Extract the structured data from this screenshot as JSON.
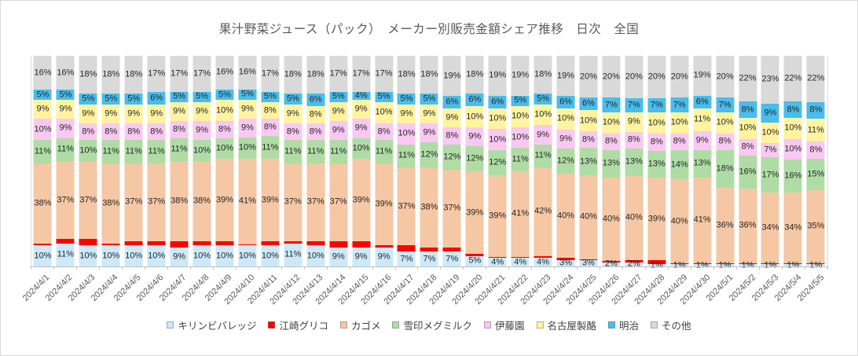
{
  "title": "果汁野菜ジュース（パック）　メーカー別販売金額シェア推移　日次　全国",
  "chart_data": {
    "type": "bar",
    "stacked": true,
    "percent_stacked": true,
    "title": "果汁野菜ジュース（パック）　メーカー別販売金額シェア推移　日次　全国",
    "xlabel": "",
    "ylabel": "",
    "ylim": [
      0,
      100
    ],
    "unit": "%",
    "grid": false,
    "legend_position": "bottom",
    "x_label_rotation_deg": 45,
    "label_format": "{value}%",
    "categories": [
      "2024/4/1",
      "2024/4/2",
      "2024/4/3",
      "2024/4/4",
      "2024/4/5",
      "2024/4/6",
      "2024/4/7",
      "2024/4/8",
      "2024/4/9",
      "2024/4/10",
      "2024/4/11",
      "2024/4/12",
      "2024/4/13",
      "2024/4/14",
      "2024/4/15",
      "2024/4/16",
      "2024/4/17",
      "2024/4/18",
      "2024/4/19",
      "2024/4/20",
      "2024/4/21",
      "2024/4/22",
      "2024/4/23",
      "2024/4/24",
      "2024/4/25",
      "2024/4/26",
      "2024/4/27",
      "2024/4/28",
      "2024/4/29",
      "2024/4/30",
      "2024/5/1",
      "2024/5/2",
      "2024/5/3",
      "2024/5/4",
      "2024/5/5"
    ],
    "series": [
      {
        "name": "キリンビバレッジ",
        "key": "kirin-beverage",
        "color": "#CBE9F8",
        "show_labels": true,
        "values": [
          10,
          11,
          10,
          10,
          10,
          10,
          9,
          10,
          10,
          10,
          10,
          11,
          10,
          9,
          9,
          9,
          7,
          7,
          7,
          5,
          4,
          4,
          4,
          3,
          3,
          2,
          2,
          1,
          1,
          1,
          1,
          1,
          1,
          1,
          1
        ]
      },
      {
        "name": "江崎グリコ",
        "key": "ezaki-glico",
        "color": "#FF0000",
        "show_labels": false,
        "values": [
          1,
          2,
          3,
          1,
          2,
          2,
          3,
          2,
          2,
          0,
          2,
          1,
          2,
          3,
          3,
          1,
          3,
          2,
          2,
          1,
          0,
          0,
          1,
          1,
          0,
          0,
          1,
          2,
          0,
          0,
          0,
          0,
          0,
          0,
          0
        ]
      },
      {
        "name": "カゴメ",
        "key": "kagome",
        "color": "#F5C7A4",
        "show_labels": true,
        "values": [
          38,
          37,
          37,
          38,
          37,
          37,
          38,
          38,
          39,
          41,
          39,
          37,
          37,
          37,
          39,
          39,
          37,
          38,
          37,
          39,
          39,
          41,
          42,
          40,
          40,
          40,
          40,
          39,
          40,
          41,
          36,
          36,
          34,
          34,
          35
        ]
      },
      {
        "name": "雪印メグミルク",
        "key": "yukijirushi-megmilk",
        "color": "#AFDCA5",
        "show_labels": true,
        "values": [
          11,
          11,
          10,
          11,
          11,
          11,
          11,
          10,
          10,
          10,
          11,
          11,
          11,
          11,
          10,
          11,
          11,
          12,
          12,
          12,
          12,
          11,
          11,
          12,
          13,
          13,
          13,
          13,
          14,
          13,
          18,
          16,
          17,
          16,
          15
        ]
      },
      {
        "name": "伊藤園",
        "key": "itoen",
        "color": "#F9C8F1",
        "show_labels": true,
        "values": [
          10,
          9,
          8,
          8,
          8,
          8,
          8,
          9,
          8,
          9,
          8,
          8,
          8,
          9,
          9,
          8,
          10,
          9,
          8,
          9,
          10,
          10,
          9,
          9,
          8,
          8,
          8,
          8,
          8,
          9,
          8,
          8,
          7,
          10,
          8
        ]
      },
      {
        "name": "名古屋製酪",
        "key": "nagoya-seiraku",
        "color": "#FFF3A0",
        "show_labels": true,
        "values": [
          9,
          9,
          9,
          9,
          9,
          9,
          9,
          9,
          10,
          9,
          8,
          9,
          8,
          9,
          9,
          10,
          9,
          9,
          9,
          10,
          10,
          10,
          10,
          10,
          10,
          10,
          9,
          10,
          10,
          11,
          10,
          10,
          10,
          10,
          11
        ]
      },
      {
        "name": "明治",
        "key": "meiji",
        "color": "#49BDEB",
        "show_labels": true,
        "values": [
          5,
          5,
          5,
          5,
          5,
          6,
          5,
          5,
          5,
          5,
          5,
          5,
          6,
          5,
          4,
          5,
          5,
          5,
          6,
          6,
          6,
          5,
          5,
          6,
          6,
          7,
          7,
          7,
          7,
          6,
          7,
          8,
          9,
          8,
          8
        ]
      },
      {
        "name": "その他",
        "key": "others",
        "color": "#D9D9D9",
        "show_labels": true,
        "values": [
          16,
          16,
          18,
          18,
          18,
          17,
          17,
          17,
          16,
          16,
          17,
          18,
          18,
          17,
          17,
          17,
          18,
          18,
          19,
          18,
          19,
          19,
          18,
          19,
          20,
          20,
          20,
          20,
          20,
          19,
          20,
          22,
          23,
          22,
          22
        ]
      }
    ]
  }
}
